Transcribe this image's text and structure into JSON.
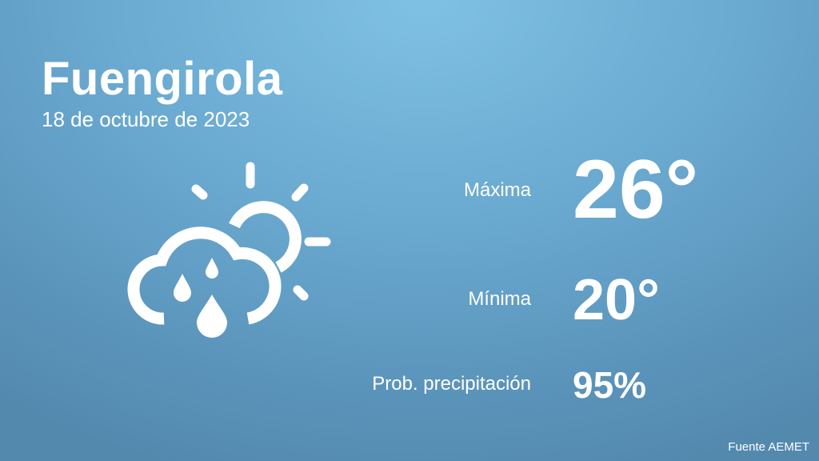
{
  "header": {
    "city": "Fuengirola",
    "date": "18 de octubre de 2023"
  },
  "weather": {
    "icon": "cloud-rain-sun-icon",
    "max_label": "Máxima",
    "max_value": "26°",
    "min_label": "Mínima",
    "min_value": "20°",
    "precip_label": "Prob. precipitación",
    "precip_value": "95%"
  },
  "footer": {
    "source": "Fuente AEMET"
  },
  "colors": {
    "background_top": "#7fc1e4",
    "background_bottom": "#5489ae",
    "text": "#ffffff"
  }
}
